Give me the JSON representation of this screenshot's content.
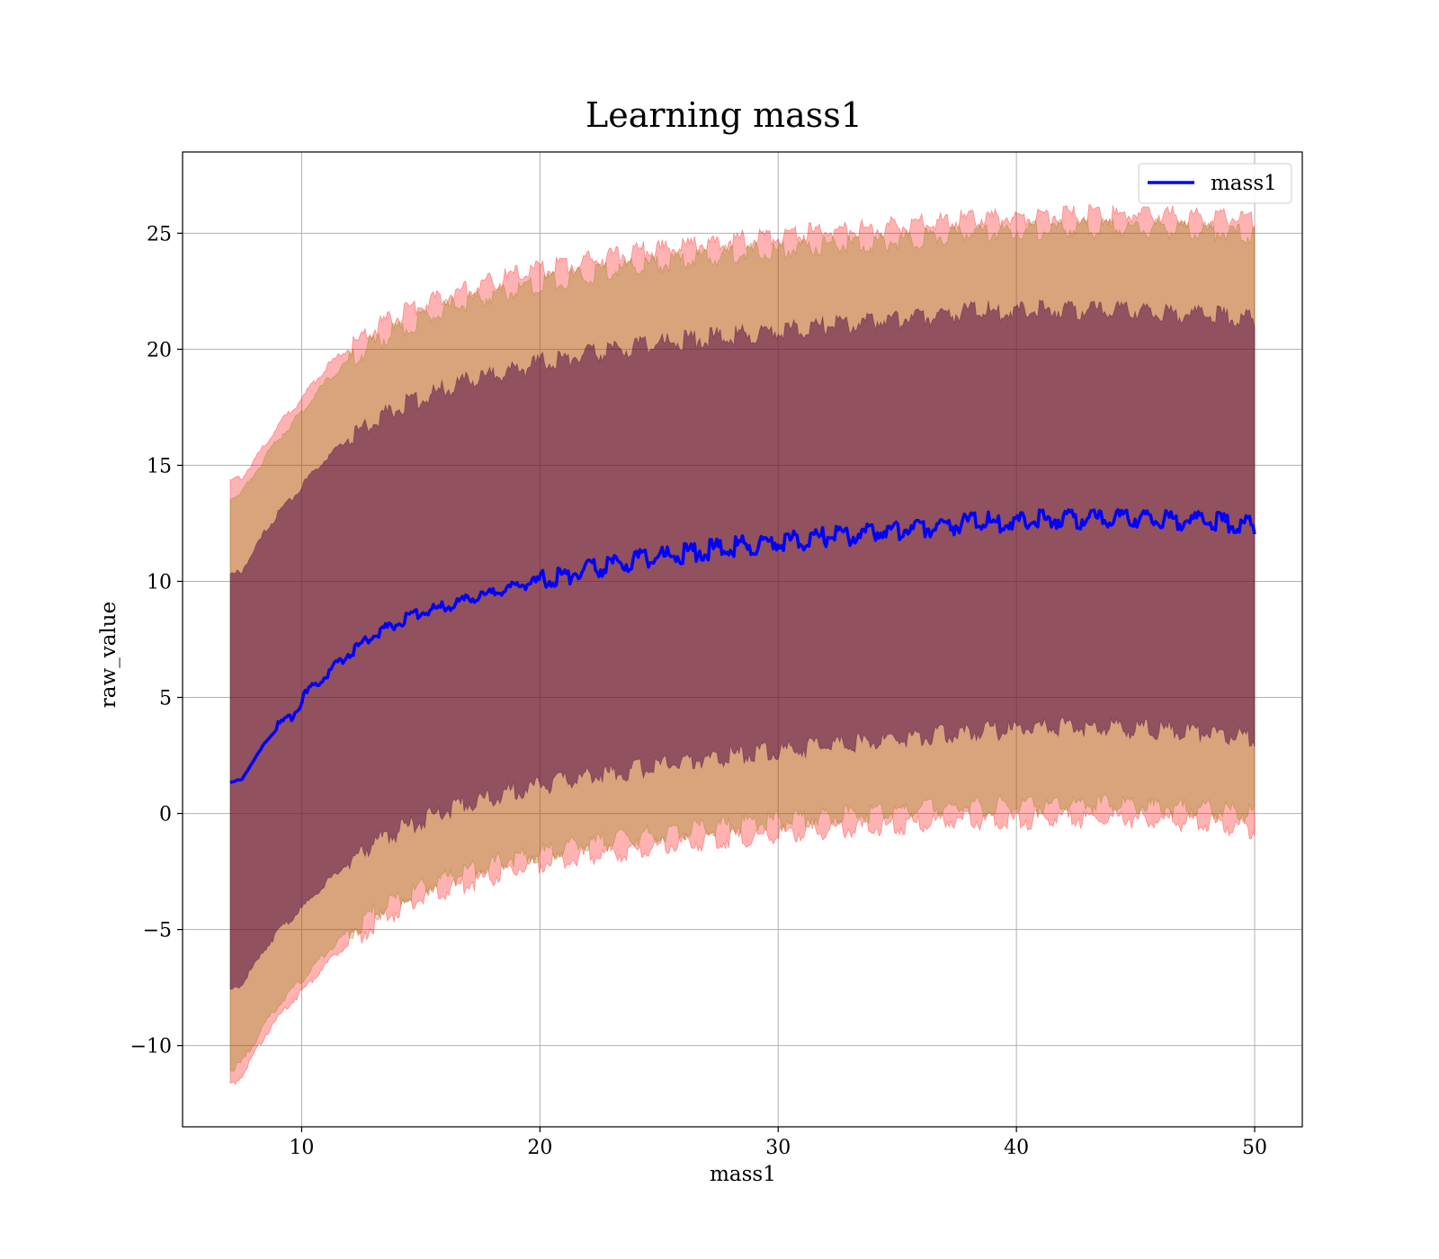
{
  "chart_data": {
    "type": "line",
    "title": "Learning mass1",
    "xlabel": "mass1",
    "ylabel": "raw_value",
    "xlim": [
      5,
      52
    ],
    "ylim": [
      -13.5,
      28.5
    ],
    "xticks": [
      10,
      20,
      30,
      40,
      50
    ],
    "yticks": [
      -10,
      -5,
      0,
      5,
      10,
      15,
      20,
      25
    ],
    "xtick_labels": [
      "10",
      "20",
      "30",
      "40",
      "50"
    ],
    "ytick_labels": [
      "−10",
      "−5",
      "0",
      "5",
      "10",
      "15",
      "20",
      "25"
    ],
    "grid": true,
    "legend": {
      "position": "top-right",
      "entries": [
        "mass1"
      ]
    },
    "x": [
      7,
      7.5,
      8,
      8.5,
      9,
      9.5,
      10,
      11,
      12,
      13,
      14,
      15,
      16,
      17,
      18,
      19,
      20,
      22,
      24,
      26,
      28,
      30,
      32,
      34,
      36,
      38,
      40,
      42,
      44,
      46,
      48,
      50
    ],
    "series": [
      {
        "name": "mass1",
        "color": "#0000ff",
        "values": [
          1.3,
          1.5,
          2.3,
          3.1,
          3.7,
          4.1,
          4.9,
          6.0,
          6.9,
          7.7,
          8.2,
          8.7,
          8.9,
          9.2,
          9.5,
          9.8,
          10.0,
          10.5,
          10.9,
          11.2,
          11.5,
          11.7,
          11.9,
          12.1,
          12.3,
          12.5,
          12.6,
          12.7,
          12.7,
          12.7,
          12.6,
          12.4
        ]
      }
    ],
    "bands": [
      {
        "color": "#ff0000",
        "opacity": 0.3,
        "lower": [
          -11.7,
          -11.3,
          -10.4,
          -9.5,
          -8.8,
          -8.2,
          -7.7,
          -6.5,
          -5.6,
          -4.8,
          -4.2,
          -3.7,
          -3.3,
          -3.0,
          -2.7,
          -2.4,
          -2.2,
          -1.8,
          -1.6,
          -1.3,
          -1.1,
          -0.9,
          -0.7,
          -0.6,
          -0.4,
          -0.3,
          -0.3,
          -0.2,
          -0.2,
          -0.3,
          -0.4,
          -0.7
        ],
        "upper": [
          14.3,
          14.5,
          15.2,
          16.0,
          16.7,
          17.3,
          17.9,
          19.2,
          20.1,
          20.8,
          21.4,
          21.9,
          22.3,
          22.6,
          22.9,
          23.2,
          23.4,
          23.8,
          24.2,
          24.4,
          24.7,
          24.9,
          25.1,
          25.2,
          25.4,
          25.6,
          25.7,
          25.8,
          25.8,
          25.8,
          25.7,
          25.6
        ]
      },
      {
        "color": "#808000",
        "opacity": 0.3,
        "lower": [
          -11.1,
          -10.7,
          -9.9,
          -9.0,
          -8.3,
          -7.7,
          -7.2,
          -6.0,
          -5.1,
          -4.3,
          -3.7,
          -3.2,
          -2.8,
          -2.5,
          -2.2,
          -1.9,
          -1.7,
          -1.3,
          -1.0,
          -0.7,
          -0.5,
          -0.3,
          -0.1,
          0.0,
          0.2,
          0.3,
          0.3,
          0.4,
          0.4,
          0.3,
          0.2,
          0.0
        ],
        "upper": [
          13.6,
          13.8,
          14.6,
          15.4,
          16.1,
          16.7,
          17.3,
          18.6,
          19.5,
          20.2,
          20.8,
          21.3,
          21.7,
          22.0,
          22.3,
          22.6,
          22.8,
          23.2,
          23.6,
          23.8,
          24.1,
          24.3,
          24.5,
          24.6,
          24.8,
          25.0,
          25.1,
          25.2,
          25.2,
          25.2,
          25.1,
          24.9
        ]
      },
      {
        "color": "#4a0040",
        "opacity": 0.5,
        "lower": [
          -7.7,
          -7.3,
          -6.6,
          -5.8,
          -5.1,
          -4.6,
          -4.1,
          -3.0,
          -2.1,
          -1.3,
          -0.8,
          -0.3,
          0.1,
          0.4,
          0.7,
          1.0,
          1.2,
          1.6,
          1.9,
          2.2,
          2.5,
          2.7,
          2.9,
          3.1,
          3.3,
          3.5,
          3.6,
          3.7,
          3.7,
          3.6,
          3.5,
          3.3
        ],
        "upper": [
          10.2,
          10.5,
          11.3,
          12.2,
          12.9,
          13.5,
          14.1,
          15.3,
          16.2,
          16.9,
          17.5,
          17.9,
          18.3,
          18.6,
          18.9,
          19.1,
          19.4,
          19.8,
          20.1,
          20.4,
          20.6,
          20.8,
          21.0,
          21.2,
          21.4,
          21.6,
          21.7,
          21.7,
          21.7,
          21.6,
          21.5,
          21.3
        ]
      }
    ]
  }
}
